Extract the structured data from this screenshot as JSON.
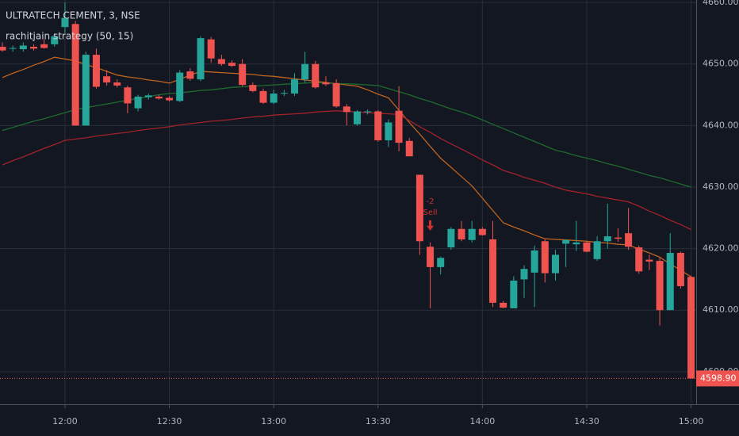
{
  "chart_data": {
    "type": "candlestick",
    "title": "ULTRATECH CEMENT, 3, NSE",
    "subtitle": "rachitjain strategy (50, 15)",
    "categories": [
      null,
      null,
      null,
      null,
      null,
      null,
      "12:00",
      null,
      null,
      null,
      null,
      null,
      null,
      null,
      null,
      null,
      "12:30",
      null,
      null,
      null,
      null,
      null,
      null,
      null,
      null,
      null,
      "13:00",
      null,
      null,
      null,
      null,
      null,
      null,
      null,
      null,
      null,
      "13:30",
      null,
      null,
      null,
      null,
      null,
      null,
      null,
      null,
      null,
      "14:00",
      null,
      null,
      null,
      null,
      null,
      null,
      null,
      null,
      null,
      "14:30",
      null,
      null,
      null,
      null,
      null,
      null,
      null,
      null,
      null,
      "15:00"
    ],
    "open": [
      4652.8,
      4652.5,
      4652.4,
      4652.8,
      4653.2,
      4653.2,
      4656,
      4656.5,
      4640,
      4651.5,
      4648,
      4647,
      4646.2,
      4642.8,
      4644.6,
      4644.7,
      4644.5,
      4644,
      4648.8,
      4647.5,
      4654,
      4650.8,
      4650.2,
      4650,
      4646.6,
      4645.6,
      4643.7,
      4645.2,
      4645.2,
      4647.5,
      4650,
      4647,
      4646.9,
      4643.1,
      4640.2,
      4642.2,
      4642.3,
      4637.6,
      4642.4,
      4637.5,
      4632,
      4620.3,
      4617,
      4620.2,
      4623.2,
      4621.4,
      4623.2,
      4621.5,
      4611.2,
      4610.3,
      4615,
      4616.1,
      4621.2,
      4616,
      4620.8,
      4620.7,
      4621,
      4618.3,
      4621.2,
      4621.8,
      4622.5,
      4620.2,
      4618.2,
      4618,
      4610,
      4619.3,
      4615.4
    ],
    "high": [
      4653.5,
      4653,
      4653.5,
      4653.2,
      4654,
      4655,
      4660,
      4657,
      4652,
      4652.5,
      4649,
      4647.5,
      4646.5,
      4645,
      4645.2,
      4645,
      4644.8,
      4649,
      4649.3,
      4654.5,
      4654.4,
      4651.5,
      4650.6,
      4650.8,
      4647,
      4646,
      4645.8,
      4645.8,
      4648.5,
      4652,
      4650.5,
      4648,
      4647.5,
      4643.5,
      4642.5,
      4642.6,
      4642.5,
      4641,
      4646.4,
      4638,
      4632,
      4621,
      4618.7,
      4623.5,
      4624.5,
      4624.5,
      4623.5,
      4624.5,
      4611.5,
      4615.5,
      4617.3,
      4620.5,
      4621.5,
      4619.8,
      4621.5,
      4624.5,
      4621.2,
      4622,
      4627.3,
      4623.3,
      4626.6,
      4620.5,
      4619,
      4618.5,
      4622.5,
      4619.5,
      4615.6
    ],
    "low": [
      4652,
      4652,
      4652,
      4652.2,
      4652.5,
      4652.8,
      4655,
      4640,
      4640,
      4646,
      4646.5,
      4646.2,
      4642,
      4642.3,
      4644.2,
      4644.2,
      4643.9,
      4643.8,
      4647.3,
      4647.2,
      4650.2,
      4649.7,
      4649.5,
      4646.4,
      4645.4,
      4643.5,
      4643.5,
      4644.8,
      4644.8,
      4647,
      4646,
      4646.4,
      4642.9,
      4640,
      4640,
      4641.8,
      4637.4,
      4636.5,
      4635.8,
      4635,
      4619,
      4610.3,
      4615.8,
      4619.8,
      4621.2,
      4621,
      4622.1,
      4610.5,
      4610.3,
      4610.3,
      4612,
      4610.5,
      4614.5,
      4614.8,
      4617,
      4619.6,
      4619.4,
      4618,
      4620,
      4621.1,
      4619.8,
      4615.9,
      4616.5,
      4607.5,
      4610,
      4613.5,
      4598.9
    ],
    "close": [
      4652.2,
      4652.6,
      4653,
      4652.5,
      4652.6,
      4654.5,
      4657.5,
      4640,
      4651.5,
      4646.3,
      4647,
      4646.5,
      4643.6,
      4644.7,
      4644.9,
      4644.4,
      4644.1,
      4648.6,
      4647.6,
      4654.2,
      4650.9,
      4650,
      4649.7,
      4646.6,
      4645.6,
      4643.7,
      4645.2,
      4645.3,
      4647.5,
      4650,
      4646.2,
      4646.7,
      4643.1,
      4642.2,
      4642.3,
      4642.3,
      4637.6,
      4640.5,
      4637.2,
      4635,
      4621.2,
      4617,
      4618.5,
      4623.2,
      4621.5,
      4623.2,
      4622.2,
      4611.2,
      4610.4,
      4614.8,
      4616.7,
      4619.7,
      4616,
      4619,
      4621.4,
      4621,
      4619.5,
      4621.2,
      4622,
      4621.6,
      4620.3,
      4616.3,
      4617.9,
      4610,
      4619.3,
      4613.9,
      4598.9
    ],
    "up_color": "#26a69a",
    "down_color": "#ef5350",
    "lines": [
      {
        "color": "#c0641e",
        "values": [
          4647.8,
          4648.5,
          4649.1,
          4649.8,
          4650.4,
          4651.1,
          4650.8,
          4650.5,
          4649.9,
          4649.4,
          4648.8,
          4648.2,
          4647.9,
          4647.7,
          4647.4,
          4647.2,
          4646.9,
          4647.5,
          4648.2,
          4648.8,
          4648.7,
          4648.6,
          4648.5,
          4648.4,
          4648.3,
          4648.1,
          4648,
          4647.8,
          4647.6,
          4647.4,
          4647.2,
          4647,
          4646.8,
          4646.6,
          4646.4,
          4645.8,
          4645.1,
          4644.5,
          4642.5,
          4640.5,
          4638.6,
          4636.6,
          4634.7,
          4633.2,
          4631.7,
          4630.2,
          4628.2,
          4626.2,
          4624.2,
          4623.5,
          4622.9,
          4622.2,
          4621.6,
          4621.5,
          4621.4,
          4621.3,
          4621.2,
          4621,
          4620.9,
          4620.7,
          4620.6,
          4619.9,
          4619.3,
          4618.6,
          4617.5,
          4616.5,
          4615.4
        ]
      },
      {
        "color": "#1f6b2e",
        "values": [
          4639.2,
          4639.7,
          4640.2,
          4640.7,
          4641.1,
          4641.6,
          4642.1,
          4642.6,
          4642.9,
          4643.2,
          4643.5,
          4643.8,
          4644.1,
          4644.4,
          4644.7,
          4645,
          4645.2,
          4645.3,
          4645.5,
          4645.7,
          4645.8,
          4646,
          4646.2,
          4646.3,
          4646.4,
          4646.5,
          4646.6,
          4646.7,
          4646.8,
          4646.9,
          4647,
          4646.9,
          4646.8,
          4646.8,
          4646.7,
          4646.6,
          4646.5,
          4646,
          4645.5,
          4645,
          4644.4,
          4643.9,
          4643.3,
          4642.7,
          4642.2,
          4641.6,
          4640.9,
          4640.2,
          4639.5,
          4638.8,
          4638.1,
          4637.4,
          4636.7,
          4636,
          4635.6,
          4635.1,
          4634.7,
          4634.3,
          4633.8,
          4633.4,
          4632.9,
          4632.4,
          4631.9,
          4631.5,
          4631,
          4630.5,
          4630
        ]
      },
      {
        "color": "#a3222a",
        "values": [
          4633.6,
          4634.3,
          4634.9,
          4635.6,
          4636.3,
          4636.9,
          4637.6,
          4637.8,
          4638,
          4638.3,
          4638.5,
          4638.7,
          4638.9,
          4639.2,
          4639.4,
          4639.6,
          4639.8,
          4640.1,
          4640.3,
          4640.5,
          4640.7,
          4640.8,
          4641,
          4641.2,
          4641.4,
          4641.5,
          4641.7,
          4641.8,
          4641.9,
          4642,
          4642.2,
          4642.3,
          4642.4,
          4642.3,
          4642.2,
          4642.1,
          4642,
          4641.9,
          4641.8,
          4640.8,
          4639.8,
          4638.9,
          4637.9,
          4637,
          4636.2,
          4635.3,
          4634.4,
          4633.6,
          4632.7,
          4632.2,
          4631.6,
          4631.1,
          4630.6,
          4630,
          4629.5,
          4629.2,
          4628.9,
          4628.5,
          4628.2,
          4627.9,
          4627.6,
          4626.9,
          4626.1,
          4625.4,
          4624.6,
          4623.9,
          4623.1
        ]
      }
    ],
    "annotation": {
      "index": 41,
      "lines": [
        "-2",
        "Sell"
      ],
      "color": "#d32f2f"
    },
    "ylim": [
      4594.7,
      4660.4
    ],
    "yticks": [
      {
        "value": 4600,
        "label": "4600.00"
      },
      {
        "value": 4610,
        "label": "4610.00"
      },
      {
        "value": 4620,
        "label": "4620.00"
      },
      {
        "value": 4630,
        "label": "4630.00"
      },
      {
        "value": 4640,
        "label": "4640.00"
      },
      {
        "value": 4650,
        "label": "4650.00"
      },
      {
        "value": 4660,
        "label": "4660.00"
      }
    ],
    "last_price": {
      "value": 4598.9,
      "label": "4598.90"
    },
    "grid": true
  }
}
